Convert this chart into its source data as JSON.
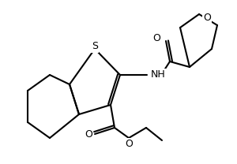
{
  "background_color": "#ffffff",
  "line_color": "#000000",
  "atom_labels": {
    "S": "S",
    "O_ester": "O",
    "O_carbonyl1": "O",
    "O_carbonyl2": "O",
    "O_furan": "O",
    "NH": "NH"
  },
  "figsize": [
    3.0,
    2.08
  ],
  "dpi": 100
}
